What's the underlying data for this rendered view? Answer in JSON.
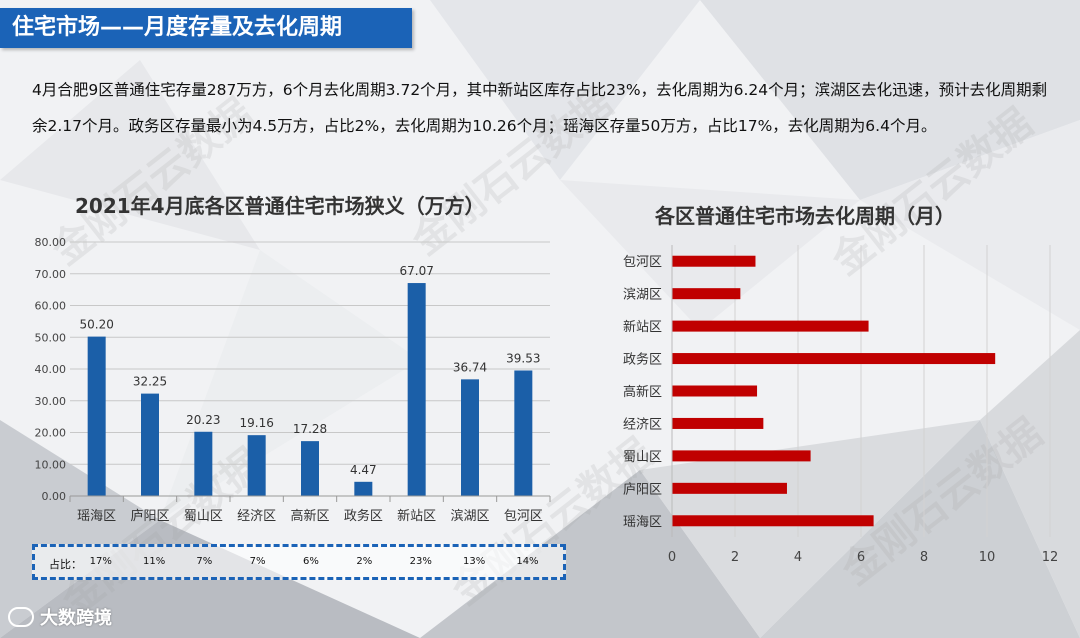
{
  "header": {
    "title": "住宅市场——月度存量及去化周期"
  },
  "summary": "4月合肥9区普通住宅存量287万方，6个月去化周期3.72个月，其中新站区库存占比23%，去化周期为6.24个月；滨湖区去化迅速，预计去化周期剩余2.17个月。政务区存量最小为4.5万方，占比2%，去化周期为10.26个月；瑶海区存量50万方，占比17%，去化周期为6.4个月。",
  "share": {
    "label": "占比：",
    "values": [
      "17%",
      "11%",
      "7%",
      "7%",
      "6%",
      "2%",
      "23%",
      "13%",
      "14%"
    ]
  },
  "brand": {
    "logo_text": "大数跨境",
    "watermark": "金刚石云数据"
  },
  "colors": {
    "bar": "#1b5fa8",
    "hbar": "#c00000",
    "title_bar": "#1b63b7"
  },
  "chart_data": [
    {
      "type": "bar",
      "title": "2021年4月底各区普通住宅市场狭义（万方）",
      "categories": [
        "瑶海区",
        "庐阳区",
        "蜀山区",
        "经济区",
        "高新区",
        "政务区",
        "新站区",
        "滨湖区",
        "包河区"
      ],
      "values": [
        50.2,
        32.25,
        20.23,
        19.16,
        17.28,
        4.47,
        67.07,
        36.74,
        39.53
      ],
      "value_labels": [
        "50.20",
        "32.25",
        "20.23",
        "19.16",
        "17.28",
        "4.47",
        "67.07",
        "36.74",
        "39.53"
      ],
      "yticks": [
        "0.00",
        "10.00",
        "20.00",
        "30.00",
        "40.00",
        "50.00",
        "60.00",
        "70.00",
        "80.00"
      ],
      "ylim": [
        0,
        80
      ],
      "grid": true
    },
    {
      "type": "bar",
      "orientation": "horizontal",
      "title": "各区普通住宅市场去化周期（月）",
      "categories": [
        "包河区",
        "滨湖区",
        "新站区",
        "政务区",
        "高新区",
        "经济区",
        "蜀山区",
        "庐阳区",
        "瑶海区"
      ],
      "values": [
        2.65,
        2.17,
        6.24,
        10.26,
        2.7,
        2.9,
        4.4,
        3.65,
        6.4
      ],
      "xticks": [
        "0",
        "2",
        "4",
        "6",
        "8",
        "10",
        "12"
      ],
      "xlim": [
        0,
        12
      ],
      "grid": true
    }
  ]
}
